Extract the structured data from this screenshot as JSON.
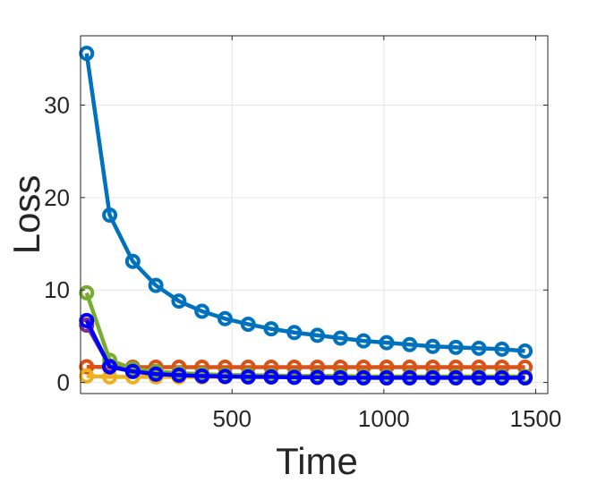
{
  "chart_data": {
    "type": "line",
    "title": "",
    "xlabel": "Time",
    "ylabel": "Loss",
    "xlim": [
      1,
      1540
    ],
    "ylim": [
      -1.2,
      37.5
    ],
    "xticks": [
      500,
      1000,
      1500
    ],
    "yticks": [
      0,
      10,
      20,
      30
    ],
    "grid": true,
    "legend": "none",
    "x": [
      21,
      97,
      173,
      249,
      325,
      401,
      477,
      553,
      629,
      705,
      781,
      857,
      933,
      1009,
      1085,
      1161,
      1237,
      1313,
      1389,
      1465
    ],
    "series": [
      {
        "color": "#0072BD",
        "values": [
          35.6,
          18.1,
          13.1,
          10.5,
          8.8,
          7.7,
          6.9,
          6.3,
          5.8,
          5.4,
          5.1,
          4.8,
          4.5,
          4.3,
          4.1,
          3.9,
          3.8,
          3.7,
          3.6,
          3.4
        ]
      },
      {
        "color": "#D95319",
        "values": [
          1.7,
          1.65,
          1.65,
          1.65,
          1.65,
          1.65,
          1.65,
          1.65,
          1.65,
          1.65,
          1.65,
          1.65,
          1.65,
          1.65,
          1.65,
          1.65,
          1.65,
          1.65,
          1.65,
          1.65
        ]
      },
      {
        "color": "#EDB120",
        "values": [
          0.7,
          0.6,
          0.6,
          0.6,
          0.6,
          0.6,
          0.6,
          0.6,
          0.6,
          0.6,
          0.6,
          0.6,
          0.6,
          0.6,
          0.6,
          0.6,
          0.6,
          0.6,
          0.6,
          0.6
        ]
      },
      {
        "color": "#7E2F8E",
        "values": [
          6.2,
          1.8,
          1.2,
          0.9,
          0.8,
          0.75,
          0.7,
          0.65,
          0.6,
          0.6,
          0.6,
          0.6,
          0.55,
          0.55,
          0.55,
          0.55,
          0.55,
          0.55,
          0.55,
          0.55
        ]
      },
      {
        "color": "#77AC30",
        "values": [
          9.7,
          2.4,
          1.5,
          1.2,
          1.0,
          0.9,
          0.8,
          0.8,
          0.75,
          0.7,
          0.7,
          0.7,
          0.65,
          0.65,
          0.65,
          0.65,
          0.65,
          0.65,
          0.65,
          0.65
        ]
      },
      {
        "color": "#0000FF",
        "values": [
          6.7,
          1.7,
          1.2,
          0.9,
          0.8,
          0.7,
          0.65,
          0.6,
          0.6,
          0.55,
          0.55,
          0.5,
          0.5,
          0.5,
          0.5,
          0.5,
          0.5,
          0.5,
          0.5,
          0.5
        ]
      }
    ]
  }
}
